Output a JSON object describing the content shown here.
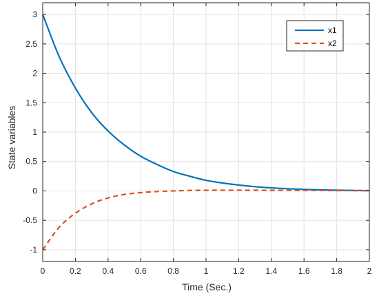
{
  "chart_data": {
    "type": "line",
    "title": "",
    "xlabel": "Time (Sec.)",
    "ylabel": "State variables",
    "xlim": [
      0,
      2
    ],
    "ylim": [
      -1.2,
      3.2
    ],
    "xticks": [
      0,
      0.2,
      0.4,
      0.6,
      0.8,
      1,
      1.2,
      1.4,
      1.6,
      1.8,
      2
    ],
    "xtick_labels": [
      "0",
      "0.2",
      "0.4",
      "0.6",
      "0.8",
      "1",
      "1.2",
      "1.4",
      "1.6",
      "1.8",
      "2"
    ],
    "yticks": [
      -1,
      -0.5,
      0,
      0.5,
      1,
      1.5,
      2,
      2.5,
      3
    ],
    "ytick_labels": [
      "-1",
      "-0.5",
      "0",
      "0.5",
      "1",
      "1.5",
      "2",
      "2.5",
      "3"
    ],
    "grid": true,
    "legend_position": "top-right",
    "x": [
      0,
      0.1,
      0.2,
      0.3,
      0.4,
      0.5,
      0.6,
      0.7,
      0.8,
      0.9,
      1.0,
      1.1,
      1.2,
      1.3,
      1.4,
      1.5,
      1.6,
      1.7,
      1.8,
      1.9,
      2.0
    ],
    "series": [
      {
        "name": "x1",
        "color": "#0072BD",
        "style": "solid",
        "values": [
          3.0,
          2.29,
          1.75,
          1.33,
          1.02,
          0.78,
          0.59,
          0.45,
          0.33,
          0.25,
          0.18,
          0.135,
          0.1,
          0.072,
          0.052,
          0.037,
          0.026,
          0.018,
          0.012,
          0.008,
          0.005
        ]
      },
      {
        "name": "x2",
        "color": "#D95319",
        "style": "dashed",
        "values": [
          -1.0,
          -0.62,
          -0.38,
          -0.22,
          -0.12,
          -0.06,
          -0.03,
          -0.01,
          0.0,
          0.008,
          0.01,
          0.012,
          0.012,
          0.011,
          0.01,
          0.009,
          0.007,
          0.006,
          0.005,
          0.004,
          0.003
        ]
      }
    ]
  }
}
